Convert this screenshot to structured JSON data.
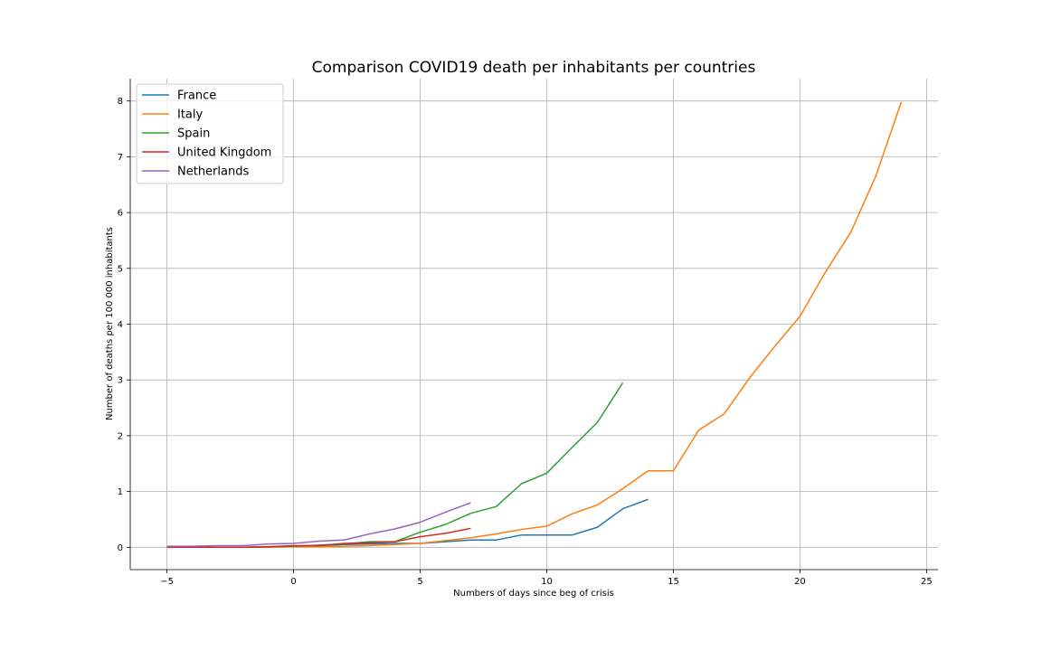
{
  "chart_data": {
    "type": "line",
    "title": "Comparison COVID19 death per inhabitants per countries",
    "xlabel": "Numbers of days since beg of crisis",
    "ylabel": "Number of deaths per 100 000 inhabitants",
    "xlim": [
      -6.45,
      25.45
    ],
    "ylim": [
      -0.4,
      8.4
    ],
    "xticks": [
      -5,
      0,
      5,
      10,
      15,
      20,
      25
    ],
    "xtick_labels": [
      "−5",
      "0",
      "5",
      "10",
      "15",
      "20",
      "25"
    ],
    "yticks": [
      0,
      1,
      2,
      3,
      4,
      5,
      6,
      7,
      8
    ],
    "ytick_labels": [
      "0",
      "1",
      "2",
      "3",
      "4",
      "5",
      "6",
      "7",
      "8"
    ],
    "grid": true,
    "legend_position": "top-left",
    "series": [
      {
        "name": "France",
        "color": "#1f77b4",
        "x": [
          -5,
          -4,
          -3,
          -2,
          -1,
          0,
          1,
          2,
          3,
          4,
          5,
          6,
          7,
          8,
          9,
          10,
          11,
          12,
          13,
          14
        ],
        "y": [
          0.0,
          0.0,
          0.0,
          0.0,
          0.01,
          0.02,
          0.03,
          0.05,
          0.06,
          0.07,
          0.07,
          0.1,
          0.13,
          0.13,
          0.22,
          0.22,
          0.22,
          0.36,
          0.69,
          0.86
        ]
      },
      {
        "name": "Italy",
        "color": "#ff7f0e",
        "x": [
          -5,
          -4,
          -3,
          -2,
          -1,
          0,
          1,
          2,
          3,
          4,
          5,
          6,
          7,
          8,
          9,
          10,
          11,
          12,
          13,
          14,
          15,
          16,
          17,
          18,
          19,
          20,
          21,
          22,
          23,
          24
        ],
        "y": [
          0.0,
          0.0,
          0.0,
          0.0,
          0.0,
          0.01,
          0.01,
          0.02,
          0.03,
          0.05,
          0.07,
          0.12,
          0.17,
          0.24,
          0.32,
          0.38,
          0.6,
          0.76,
          1.05,
          1.37,
          1.37,
          2.1,
          2.39,
          3.03,
          3.6,
          4.14,
          4.93,
          5.64,
          6.66,
          7.98
        ]
      },
      {
        "name": "Spain",
        "color": "#2ca02c",
        "x": [
          -5,
          -4,
          -3,
          -2,
          -1,
          0,
          1,
          2,
          3,
          4,
          5,
          6,
          7,
          8,
          9,
          10,
          11,
          12,
          13
        ],
        "y": [
          0.0,
          0.0,
          0.0,
          0.0,
          0.01,
          0.02,
          0.04,
          0.06,
          0.1,
          0.1,
          0.27,
          0.41,
          0.61,
          0.73,
          1.14,
          1.33,
          1.79,
          2.24,
          2.95
        ]
      },
      {
        "name": "United Kingdom",
        "color": "#d62728",
        "x": [
          -5,
          -4,
          -3,
          -2,
          -1,
          0,
          1,
          2,
          3,
          4,
          5,
          6,
          7
        ],
        "y": [
          0.0,
          0.0,
          0.0,
          0.0,
          0.01,
          0.03,
          0.03,
          0.07,
          0.08,
          0.1,
          0.19,
          0.25,
          0.34
        ]
      },
      {
        "name": "Netherlands",
        "color": "#9467bd",
        "x": [
          -5,
          -4,
          -3,
          -2,
          -1,
          0,
          1,
          2,
          3,
          4,
          5,
          6,
          7
        ],
        "y": [
          0.02,
          0.02,
          0.03,
          0.03,
          0.06,
          0.07,
          0.11,
          0.13,
          0.24,
          0.33,
          0.45,
          0.63,
          0.8
        ]
      }
    ]
  }
}
